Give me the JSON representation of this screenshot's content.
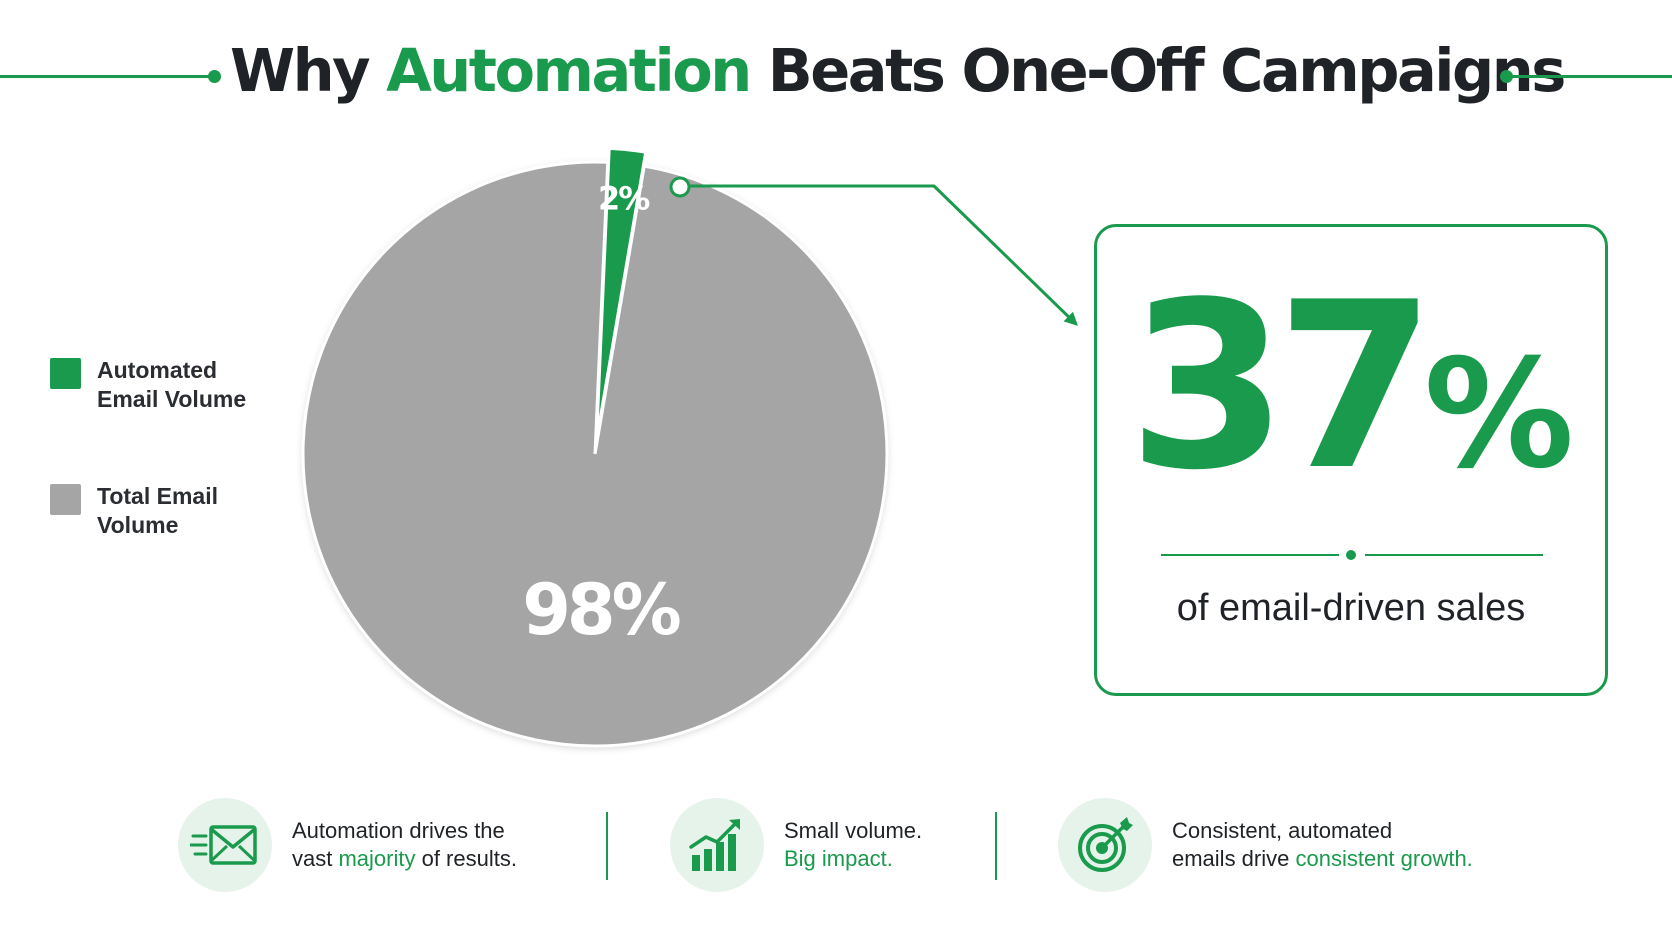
{
  "title": {
    "prefix": "Why ",
    "highlight": "Automation",
    "suffix": " Beats One-Off Campaigns"
  },
  "colors": {
    "accent": "#1a9a4d",
    "gray": "#a5a5a5",
    "text": "#1f2226"
  },
  "legend": [
    {
      "label": "Automated Email Volume",
      "color": "#1a9a4d"
    },
    {
      "label": "Total Email Volume",
      "color": "#a5a5a5"
    }
  ],
  "chart_data": {
    "type": "pie",
    "slices": [
      {
        "label": "Automated Email Volume",
        "value": 2,
        "display": "2%",
        "color": "#1a9a4d"
      },
      {
        "label": "Total Email Volume",
        "value": 98,
        "display": "98%",
        "color": "#a5a5a5"
      }
    ],
    "legend_position": "left"
  },
  "stat": {
    "value": "37",
    "unit": "%",
    "caption": "of email-driven sales"
  },
  "features": [
    {
      "icon": "envelope-icon",
      "line1": "Automation drives the",
      "line2_pre": "vast ",
      "line2_hl": "majority",
      "line2_post": " of results."
    },
    {
      "icon": "growth-chart-icon",
      "line1": "Small volume.",
      "line2_pre": "",
      "line2_hl": "Big impact.",
      "line2_post": ""
    },
    {
      "icon": "target-icon",
      "line1": "Consistent, automated",
      "line2_pre": "emails drive ",
      "line2_hl": "consistent growth.",
      "line2_post": ""
    }
  ]
}
